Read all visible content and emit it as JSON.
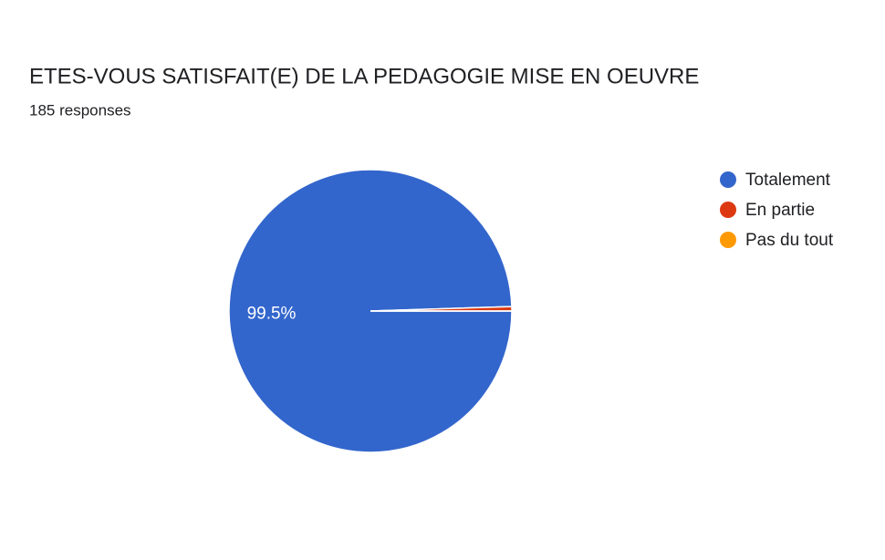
{
  "chart_data": {
    "type": "pie",
    "title": "ETES-VOUS SATISFAIT(E) DE LA PEDAGOGIE MISE EN OEUVRE",
    "subtitle": "185 responses",
    "categories": [
      "Totalement",
      "En partie",
      "Pas du tout"
    ],
    "values": [
      99.5,
      0.5,
      0
    ],
    "value_labels": [
      "99.5%",
      null,
      null
    ],
    "colors": [
      "#3366cc",
      "#dc3912",
      "#ff9900"
    ],
    "legend": "right"
  }
}
